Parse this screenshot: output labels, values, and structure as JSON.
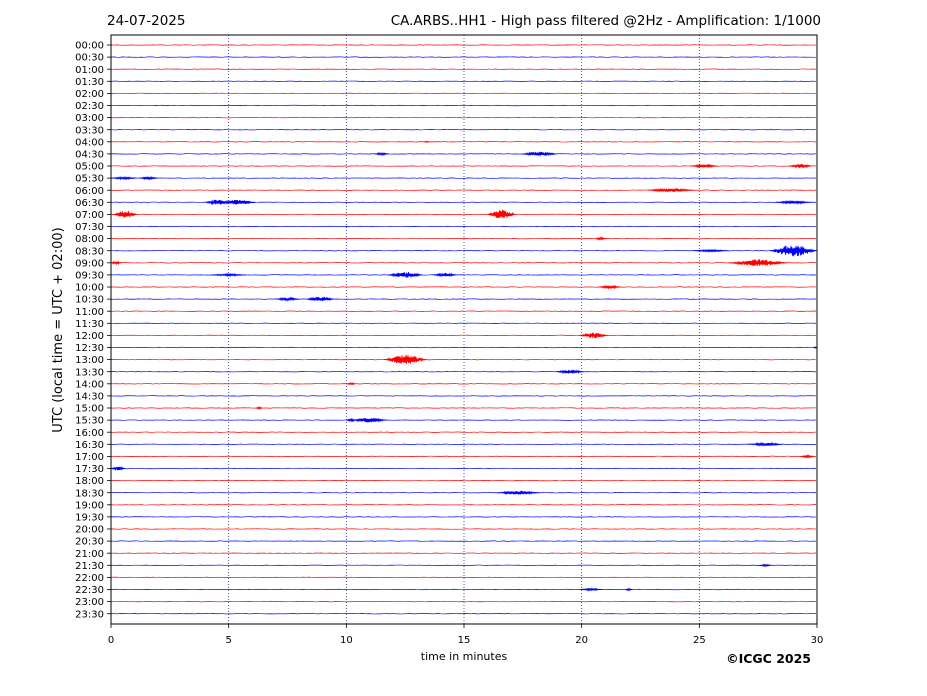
{
  "header": {
    "date": "24-07-2025",
    "title": "CA.ARBS..HH1 - High pass filtered @2Hz - Amplification: 1/1000"
  },
  "footer": {
    "copyright": "©ICGC 2025"
  },
  "chart_data": {
    "type": "line",
    "title": "CA.ARBS..HH1 - High pass filtered @2Hz - Amplification: 1/1000",
    "xlabel": "time in minutes",
    "ylabel": "UTC (local time = UTC + 02:00)",
    "xlim": [
      0,
      30
    ],
    "xticks": [
      0,
      5,
      10,
      15,
      20,
      25,
      30
    ],
    "yticks": [
      "00:00",
      "00:30",
      "01:00",
      "01:30",
      "02:00",
      "02:30",
      "03:00",
      "03:30",
      "04:00",
      "04:30",
      "05:00",
      "05:30",
      "06:00",
      "06:30",
      "07:00",
      "07:30",
      "08:00",
      "08:30",
      "09:00",
      "09:30",
      "10:00",
      "10:30",
      "11:00",
      "11:30",
      "12:00",
      "12:30",
      "13:00",
      "13:30",
      "14:00",
      "14:30",
      "15:00",
      "15:30",
      "16:00",
      "16:30",
      "17:00",
      "17:30",
      "18:00",
      "18:30",
      "19:00",
      "19:30",
      "20:00",
      "20:30",
      "21:00",
      "21:30",
      "22:00",
      "22:30",
      "23:00",
      "23:30"
    ],
    "trace_colors": [
      "#ff0000",
      "#0000ff"
    ],
    "grid": "vertical dotted at 5-minute ticks",
    "events": [
      {
        "row": "04:00",
        "minute": 13.4,
        "duration": 0.3,
        "amplitude": 0.5
      },
      {
        "row": "04:30",
        "minute": 11.5,
        "duration": 0.6,
        "amplitude": 1.2
      },
      {
        "row": "04:30",
        "minute": 18.2,
        "duration": 1.5,
        "amplitude": 2.5
      },
      {
        "row": "05:00",
        "minute": 25.2,
        "duration": 1.2,
        "amplitude": 1.5
      },
      {
        "row": "05:00",
        "minute": 29.3,
        "duration": 1.0,
        "amplitude": 2.0
      },
      {
        "row": "05:30",
        "minute": 0.5,
        "duration": 1.2,
        "amplitude": 1.2
      },
      {
        "row": "05:30",
        "minute": 1.6,
        "duration": 0.8,
        "amplitude": 1.5
      },
      {
        "row": "06:00",
        "minute": 23.8,
        "duration": 2.0,
        "amplitude": 2.0
      },
      {
        "row": "06:30",
        "minute": 4.5,
        "duration": 1.0,
        "amplitude": 3.0
      },
      {
        "row": "06:30",
        "minute": 5.4,
        "duration": 1.5,
        "amplitude": 2.5
      },
      {
        "row": "06:30",
        "minute": 29.0,
        "duration": 1.5,
        "amplitude": 1.5
      },
      {
        "row": "07:00",
        "minute": 0.6,
        "duration": 1.0,
        "amplitude": 4.0
      },
      {
        "row": "07:00",
        "minute": 16.6,
        "duration": 1.2,
        "amplitude": 5.0
      },
      {
        "row": "08:00",
        "minute": 20.8,
        "duration": 0.5,
        "amplitude": 1.2
      },
      {
        "row": "08:30",
        "minute": 25.5,
        "duration": 1.5,
        "amplitude": 1.0
      },
      {
        "row": "08:30",
        "minute": 29.0,
        "duration": 2.0,
        "amplitude": 6.0
      },
      {
        "row": "09:00",
        "minute": 0.2,
        "duration": 0.5,
        "amplitude": 1.5
      },
      {
        "row": "09:00",
        "minute": 27.5,
        "duration": 2.5,
        "amplitude": 3.5
      },
      {
        "row": "09:30",
        "minute": 5.0,
        "duration": 1.5,
        "amplitude": 1.0
      },
      {
        "row": "09:30",
        "minute": 12.5,
        "duration": 1.5,
        "amplitude": 3.0
      },
      {
        "row": "09:30",
        "minute": 14.2,
        "duration": 1.0,
        "amplitude": 2.0
      },
      {
        "row": "10:00",
        "minute": 21.2,
        "duration": 1.0,
        "amplitude": 1.5
      },
      {
        "row": "10:30",
        "minute": 7.5,
        "duration": 1.0,
        "amplitude": 1.5
      },
      {
        "row": "10:30",
        "minute": 8.9,
        "duration": 1.2,
        "amplitude": 2.5
      },
      {
        "row": "12:00",
        "minute": 20.5,
        "duration": 1.2,
        "amplitude": 3.0
      },
      {
        "row": "12:30",
        "minute": 30.0,
        "duration": 0.3,
        "amplitude": 1.0
      },
      {
        "row": "13:00",
        "minute": 12.5,
        "duration": 1.8,
        "amplitude": 5.0
      },
      {
        "row": "13:30",
        "minute": 19.5,
        "duration": 1.2,
        "amplitude": 2.0
      },
      {
        "row": "14:00",
        "minute": 10.2,
        "duration": 0.4,
        "amplitude": 1.0
      },
      {
        "row": "15:00",
        "minute": 6.3,
        "duration": 0.3,
        "amplitude": 1.0
      },
      {
        "row": "15:30",
        "minute": 10.2,
        "duration": 0.4,
        "amplitude": 1.5
      },
      {
        "row": "15:30",
        "minute": 11.0,
        "duration": 1.5,
        "amplitude": 2.5
      },
      {
        "row": "16:30",
        "minute": 27.8,
        "duration": 1.5,
        "amplitude": 1.5
      },
      {
        "row": "17:00",
        "minute": 29.6,
        "duration": 0.6,
        "amplitude": 1.5
      },
      {
        "row": "17:30",
        "minute": 0.2,
        "duration": 0.8,
        "amplitude": 2.0
      },
      {
        "row": "18:30",
        "minute": 17.3,
        "duration": 1.8,
        "amplitude": 2.0
      },
      {
        "row": "21:30",
        "minute": 27.8,
        "duration": 0.5,
        "amplitude": 1.0
      },
      {
        "row": "22:30",
        "minute": 20.4,
        "duration": 1.0,
        "amplitude": 1.0
      },
      {
        "row": "22:30",
        "minute": 22.0,
        "duration": 0.3,
        "amplitude": 1.0
      }
    ]
  }
}
